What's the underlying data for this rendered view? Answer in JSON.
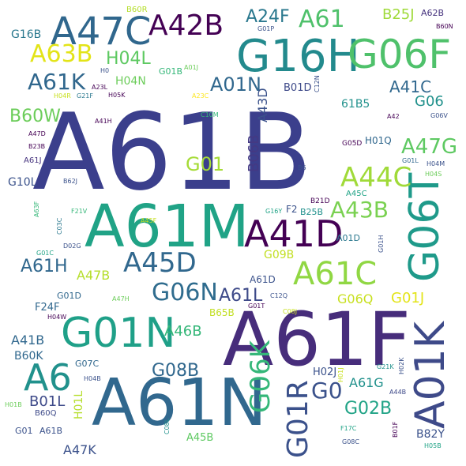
{
  "palette": {
    "dark_purple": "#440154",
    "indigo": "#3b3f8c",
    "blue": "#30678d",
    "teal": "#21918c",
    "green": "#35b779",
    "lime": "#90d743",
    "yellow": "#e3e418"
  },
  "words": [
    "A61B",
    "A61F",
    "A61N",
    "A61M",
    "G16H",
    "G06F",
    "A47C",
    "G06T",
    "A01K",
    "A41D",
    "G01N",
    "A61C",
    "A42B",
    "A6",
    "A45D",
    "A44C",
    "A63B",
    "A61",
    "A61K",
    "A43B",
    "G06K",
    "G01R",
    "G06N",
    "A47G",
    "A24F",
    "G0",
    "G01",
    "A01N",
    "A61H",
    "A61L",
    "H04L",
    "G02B",
    "B60W",
    "A41C",
    "G08B",
    "A46B",
    "G06",
    "B25J",
    "A43D",
    "B06B",
    "A47B",
    "G01J",
    "G06Q",
    "A61G",
    "B01L",
    "A41B",
    "A47K",
    "H04N",
    "G16B",
    "G10L",
    "G09B",
    "A61D",
    "B01D",
    "A45B",
    "B60K",
    "61B5",
    "B82Y",
    "H01L",
    "A61J",
    "F24F",
    "H02J",
    "G01D",
    "G07C",
    "B65B",
    "B25B",
    "H01Q",
    "A01D",
    "B60R",
    "A62B",
    "G01B",
    "A45C",
    "F2",
    "G05D",
    "B60Q",
    "G06V",
    "H04M",
    "G21K",
    "C12N",
    "A42",
    "A47D",
    "A44B",
    "B01F",
    "H05B",
    "G08C",
    "B23B",
    "H04S",
    "C10M",
    "G16Y",
    "A23L",
    "G21F",
    "A41H",
    "B21D",
    "G01L",
    "G01H",
    "A23C",
    "F21V",
    "D02G",
    "G01C",
    "C03C",
    "A63F",
    "A47H",
    "C12Q",
    "C08J",
    "H04W",
    "H04B",
    "H01B",
    "C08L",
    "F17C",
    "H02K",
    "H01J",
    "G01T",
    "B60N",
    "G01P",
    "H04R",
    "H05K",
    "A01J",
    "H0",
    "B62J",
    "B6",
    "A45F"
  ]
}
